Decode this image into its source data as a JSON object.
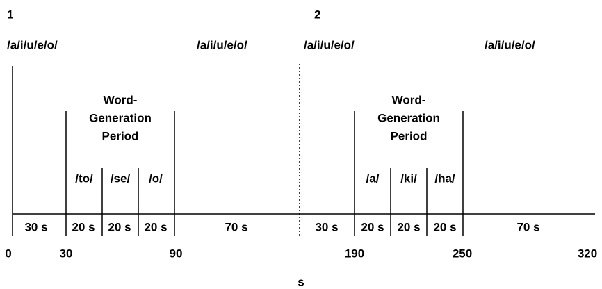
{
  "panels": [
    {
      "label": "1",
      "vowels": [
        "/a/i/u/e/o/",
        "/a/i/u/e/o/"
      ],
      "period": [
        "Word-",
        "Generation",
        "Period"
      ],
      "syllables": [
        "/to/",
        "/se/",
        "/o/"
      ],
      "durations": [
        "30 s",
        "20 s",
        "20 s",
        "20 s",
        "70 s"
      ]
    },
    {
      "label": "2",
      "vowels": [
        "/a/i/u/e/o/",
        "/a/i/u/e/o/"
      ],
      "period": [
        "Word-",
        "Generation",
        "Period"
      ],
      "syllables": [
        "/a/",
        "/ki/",
        "/ha/"
      ],
      "durations": [
        "30 s",
        "20 s",
        "20 s",
        "20 s",
        "70 s"
      ]
    }
  ],
  "times": [
    "0",
    "30",
    "90",
    "190",
    "250",
    "320"
  ],
  "unit": "s"
}
